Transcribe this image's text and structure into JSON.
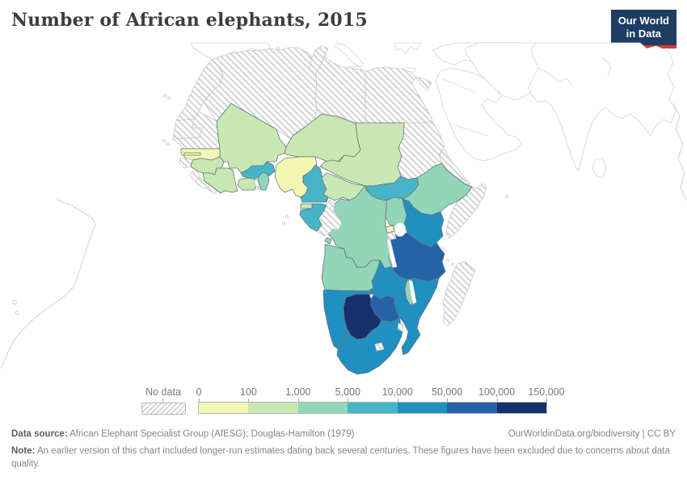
{
  "header": {
    "title": "Number of African elephants, 2015",
    "logo_line1": "Our World",
    "logo_line2": "in Data",
    "logo_bg": "#1d3d63",
    "logo_accent": "#d93a34"
  },
  "legend": {
    "no_data_label": "No data",
    "tick_labels": [
      "0",
      "100",
      "1,000",
      "5,000",
      "10,000",
      "50,000",
      "100,000",
      "150,000"
    ]
  },
  "footer": {
    "source_label": "Data source:",
    "source_text": " African Elephant Specialist Group (AfESG); Douglas-Hamilton (1979)",
    "link_text": "OurWorldinData.org/biodiversity | CC BY",
    "note_label": "Note:",
    "note_text": " An earlier version of this chart included longer-run estimates dating back several centuries. These figures have been excluded due to concerns about data quality."
  },
  "chart_data": {
    "type": "choropleth_map",
    "title": "Number of African elephants, 2015",
    "year": 2015,
    "unit": "elephants",
    "region": "Africa",
    "legend_position": "bottom",
    "scale": {
      "type": "threshold",
      "thresholds": [
        0,
        100,
        1000,
        5000,
        10000,
        50000,
        100000,
        150000
      ],
      "bin_labels": [
        "0-100",
        "100-1,000",
        "1,000-5,000",
        "5,000-10,000",
        "10,000-50,000",
        "50,000-100,000",
        "100,000-150,000"
      ],
      "colors": [
        "#f2f8b1",
        "#c8e8b3",
        "#92d5b9",
        "#46b5c8",
        "#1f90c0",
        "#2563a8",
        "#16306c"
      ],
      "no_data": "hatched"
    },
    "countries": {
      "senegal": {
        "name": "Senegal",
        "bin": 0,
        "range": "0-100"
      },
      "gambia": {
        "name": "Gambia",
        "bin": 0,
        "range": "0-100"
      },
      "nigeria": {
        "name": "Nigeria",
        "bin": 0,
        "range": "0-100"
      },
      "rwanda": {
        "name": "Rwanda",
        "bin": 0,
        "range": "0-100"
      },
      "guinea": {
        "name": "Guinea",
        "bin": 1,
        "range": "100-1,000"
      },
      "cote_divoire": {
        "name": "Cote d'Ivoire",
        "bin": 1,
        "range": "100-1,000"
      },
      "ghana": {
        "name": "Ghana",
        "bin": 1,
        "range": "100-1,000"
      },
      "mali": {
        "name": "Mali",
        "bin": 1,
        "range": "100-1,000"
      },
      "niger": {
        "name": "Niger",
        "bin": 1,
        "range": "100-1,000"
      },
      "chad": {
        "name": "Chad",
        "bin": 1,
        "range": "100-1,000"
      },
      "central_african_republic": {
        "name": "Central African Republic",
        "bin": 1,
        "range": "100-1,000"
      },
      "equatorial_guinea": {
        "name": "Equatorial Guinea",
        "bin": 1,
        "range": "100-1,000"
      },
      "benin": {
        "name": "Benin",
        "bin": 2,
        "range": "1,000-5,000"
      },
      "ethiopia": {
        "name": "Ethiopia",
        "bin": 2,
        "range": "1,000-5,000"
      },
      "drc": {
        "name": "Democratic Republic of Congo",
        "bin": 2,
        "range": "1,000-5,000"
      },
      "uganda": {
        "name": "Uganda",
        "bin": 2,
        "range": "1,000-5,000"
      },
      "angola": {
        "name": "Angola",
        "bin": 2,
        "range": "1,000-5,000"
      },
      "malawi": {
        "name": "Malawi",
        "bin": 2,
        "range": "1,000-5,000"
      },
      "burkina_faso": {
        "name": "Burkina Faso",
        "bin": 3,
        "range": "5,000-10,000"
      },
      "cameroon": {
        "name": "Cameroon",
        "bin": 3,
        "range": "5,000-10,000"
      },
      "gabon": {
        "name": "Gabon",
        "bin": 3,
        "range": "5,000-10,000"
      },
      "south_sudan": {
        "name": "South Sudan",
        "bin": 3,
        "range": "5,000-10,000"
      },
      "kenya": {
        "name": "Kenya",
        "bin": 4,
        "range": "10,000-50,000"
      },
      "zambia": {
        "name": "Zambia",
        "bin": 4,
        "range": "10,000-50,000"
      },
      "mozambique": {
        "name": "Mozambique",
        "bin": 4,
        "range": "10,000-50,000"
      },
      "namibia": {
        "name": "Namibia",
        "bin": 4,
        "range": "10,000-50,000"
      },
      "south_africa": {
        "name": "South Africa",
        "bin": 4,
        "range": "10,000-50,000"
      },
      "tanzania": {
        "name": "Tanzania",
        "bin": 5,
        "range": "50,000-100,000"
      },
      "zimbabwe": {
        "name": "Zimbabwe",
        "bin": 5,
        "range": "50,000-100,000"
      },
      "botswana": {
        "name": "Botswana",
        "bin": 6,
        "range": "100,000-150,000"
      },
      "morocco": {
        "name": "Morocco",
        "bin": null,
        "range": "No data"
      },
      "western_sahara": {
        "name": "Western Sahara",
        "bin": null,
        "range": "No data"
      },
      "algeria": {
        "name": "Algeria",
        "bin": null,
        "range": "No data"
      },
      "tunisia": {
        "name": "Tunisia",
        "bin": null,
        "range": "No data"
      },
      "libya": {
        "name": "Libya",
        "bin": null,
        "range": "No data"
      },
      "egypt": {
        "name": "Egypt",
        "bin": null,
        "range": "No data"
      },
      "mauritania": {
        "name": "Mauritania",
        "bin": null,
        "range": "No data"
      },
      "guinea_bissau": {
        "name": "Guinea-Bissau",
        "bin": null,
        "range": "No data"
      },
      "sierra_leone": {
        "name": "Sierra Leone",
        "bin": null,
        "range": "No data"
      },
      "liberia": {
        "name": "Liberia",
        "bin": null,
        "range": "No data"
      },
      "togo": {
        "name": "Togo",
        "bin": null,
        "range": "No data"
      },
      "sudan": {
        "name": "Sudan",
        "bin": null,
        "range": "No data"
      },
      "eritrea": {
        "name": "Eritrea",
        "bin": null,
        "range": "No data"
      },
      "djibouti": {
        "name": "Djibouti",
        "bin": null,
        "range": "No data"
      },
      "somalia": {
        "name": "Somalia",
        "bin": null,
        "range": "No data"
      },
      "congo": {
        "name": "Congo",
        "bin": null,
        "range": "No data"
      },
      "burundi": {
        "name": "Burundi",
        "bin": null,
        "range": "No data"
      },
      "eswatini": {
        "name": "Eswatini",
        "bin": null,
        "range": "No data"
      },
      "lesotho": {
        "name": "Lesotho",
        "bin": null,
        "range": "No data"
      },
      "madagascar": {
        "name": "Madagascar",
        "bin": null,
        "range": "No data"
      }
    }
  }
}
